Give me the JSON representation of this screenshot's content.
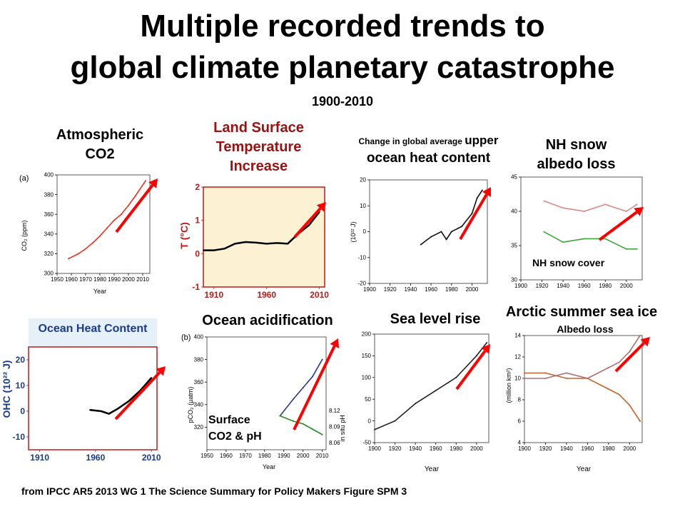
{
  "header": {
    "title_line1": "Multiple recorded trends to",
    "title_line2": "global climate  planetary catastrophe",
    "period": "1900-2010"
  },
  "labels": {
    "co2": [
      "Atmospheric",
      "CO2"
    ],
    "land_temp": [
      "Land Surface",
      "Temperature",
      "Increase"
    ],
    "upper_ohc_small": "Change in global average ",
    "upper_ohc_big1": "upper",
    "upper_ohc_big2": "ocean heat content",
    "nh_snow": [
      "NH snow",
      "albedo loss"
    ],
    "nh_snow_cover": "NH snow cover",
    "ocean_acid": "Ocean acidification",
    "surface_co2_ph": [
      "Surface",
      "CO2 & pH"
    ],
    "sea_level": "Sea level rise",
    "arctic": "Arctic summer sea ice",
    "albedo_loss": "Albedo loss"
  },
  "footer": "from IPCC AR5 2013 WG 1 The Science Summary for Policy Makers  Figure SPM 3",
  "colors": {
    "arrow": "#ff0000",
    "title_red": "#9c1010",
    "ohc_title": "#1a3c8c"
  },
  "chart_data": [
    {
      "id": "co2",
      "type": "line",
      "panel_tag": "(a)",
      "ylabel": "CO₂ (ppm)",
      "xlabel": "Year",
      "xlim": [
        1950,
        2015
      ],
      "ylim": [
        300,
        400
      ],
      "xticks": [
        1950,
        1960,
        1970,
        1980,
        1990,
        2000,
        2010
      ],
      "yticks": [
        300,
        320,
        340,
        360,
        380,
        400
      ],
      "series": [
        {
          "x": [
            1958,
            1965,
            1970,
            1975,
            1980,
            1985,
            1990,
            1995,
            2000,
            2005,
            2012
          ],
          "values": [
            315,
            320,
            325,
            331,
            338,
            346,
            354,
            360,
            369,
            379,
            394
          ]
        }
      ]
    },
    {
      "id": "land_temp",
      "type": "line",
      "ylabel": "T (°C)",
      "xlim": [
        1900,
        2015
      ],
      "ylim": [
        -1,
        2
      ],
      "xticks": [
        1910,
        1960,
        2010
      ],
      "yticks": [
        -1,
        0,
        1,
        2
      ],
      "series": [
        {
          "x": [
            1900,
            1910,
            1920,
            1930,
            1940,
            1950,
            1960,
            1970,
            1980,
            1990,
            2000,
            2010
          ],
          "values": [
            0.1,
            0.1,
            0.15,
            0.3,
            0.35,
            0.33,
            0.3,
            0.32,
            0.3,
            0.6,
            0.85,
            1.25
          ]
        }
      ]
    },
    {
      "id": "upper_ohc",
      "type": "line",
      "ylabel": "(10²² J)",
      "xlabel": "Year",
      "xlim": [
        1900,
        2015
      ],
      "ylim": [
        -20,
        20
      ],
      "xticks": [
        1900,
        1920,
        1940,
        1960,
        1980,
        2000
      ],
      "yticks": [
        -20,
        -10,
        0,
        10,
        20
      ],
      "series": [
        {
          "x": [
            1950,
            1960,
            1970,
            1975,
            1980,
            1990,
            2000,
            2005,
            2010
          ],
          "values": [
            -5,
            -2,
            0,
            -3,
            0,
            2,
            7,
            13,
            16
          ]
        }
      ]
    },
    {
      "id": "nh_snow",
      "type": "line",
      "xlim": [
        1900,
        2015
      ],
      "ylim": [
        30,
        45
      ],
      "xticks": [
        1900,
        1920,
        1940,
        1960,
        1980,
        2000
      ],
      "yticks": [
        30,
        35,
        40,
        45
      ],
      "series": [
        {
          "x": [
            1922,
            1940,
            1960,
            1980,
            2000,
            2010
          ],
          "values": [
            41.5,
            40.5,
            40,
            41,
            40,
            41
          ]
        },
        {
          "x": [
            1922,
            1940,
            1960,
            1980,
            2000,
            2010
          ],
          "values": [
            37,
            35.5,
            36,
            36,
            34.5,
            34.5
          ]
        }
      ]
    },
    {
      "id": "ohc_lower",
      "type": "line",
      "title": "Ocean Heat Content",
      "ylabel": "OHC (10²² J)",
      "xlim": [
        1900,
        2015
      ],
      "ylim": [
        -15,
        25
      ],
      "xticks": [
        1910,
        1960,
        2010
      ],
      "yticks": [
        -10,
        0,
        10,
        20
      ],
      "series": [
        {
          "x": [
            1955,
            1965,
            1972,
            1980,
            1990,
            2000,
            2010
          ],
          "values": [
            0.5,
            0,
            -1,
            1,
            4,
            8,
            13
          ]
        }
      ]
    },
    {
      "id": "ocean_acid",
      "type": "line",
      "panel_tag": "(b)",
      "ylabel": "pCO₂ (µatm)",
      "y2label": "in situ pH",
      "xlabel": "Year",
      "xlim": [
        1950,
        2012
      ],
      "ylim": [
        300,
        400
      ],
      "y2lim": [
        8.06,
        8.12
      ],
      "xticks": [
        1950,
        1960,
        1970,
        1980,
        1990,
        2000,
        2010
      ],
      "yticks": [
        320,
        340,
        360,
        380,
        400
      ],
      "y2ticks": [
        8.06,
        8.09,
        8.12
      ],
      "series": [
        {
          "x": [
            1988,
            1995,
            2000,
            2005,
            2010
          ],
          "values": [
            330,
            345,
            355,
            365,
            380
          ]
        },
        {
          "x": [
            1988,
            1995,
            2000,
            2005,
            2010
          ],
          "values": [
            8.11,
            8.1,
            8.095,
            8.085,
            8.075
          ]
        }
      ]
    },
    {
      "id": "sea_level",
      "type": "line",
      "xlabel": "Year",
      "xlim": [
        1900,
        2012
      ],
      "ylim": [
        -50,
        200
      ],
      "xticks": [
        1900,
        1920,
        1940,
        1960,
        1980,
        2000
      ],
      "yticks": [
        -50,
        0,
        50,
        100,
        150,
        200
      ],
      "series": [
        {
          "x": [
            1900,
            1920,
            1940,
            1960,
            1980,
            2000,
            2010
          ],
          "values": [
            -20,
            0,
            40,
            70,
            100,
            150,
            180
          ]
        }
      ]
    },
    {
      "id": "arctic_ice",
      "type": "line",
      "ylabel": "(million km²)",
      "xlabel": "Year",
      "xlim": [
        1900,
        2012
      ],
      "ylim": [
        4,
        14
      ],
      "xticks": [
        1900,
        1920,
        1940,
        1960,
        1980,
        2000
      ],
      "yticks": [
        4,
        6,
        8,
        10,
        12,
        14
      ],
      "series": [
        {
          "x": [
            1900,
            1920,
            1940,
            1960,
            1980,
            1990,
            2000,
            2010
          ],
          "values": [
            10.5,
            10.5,
            10,
            10,
            9,
            8.5,
            7.5,
            6
          ]
        },
        {
          "x": [
            1900,
            1920,
            1940,
            1960,
            1980,
            1990,
            2000,
            2010
          ],
          "values": [
            10,
            10,
            10.5,
            10,
            11,
            11.5,
            12.5,
            14
          ]
        }
      ]
    }
  ]
}
